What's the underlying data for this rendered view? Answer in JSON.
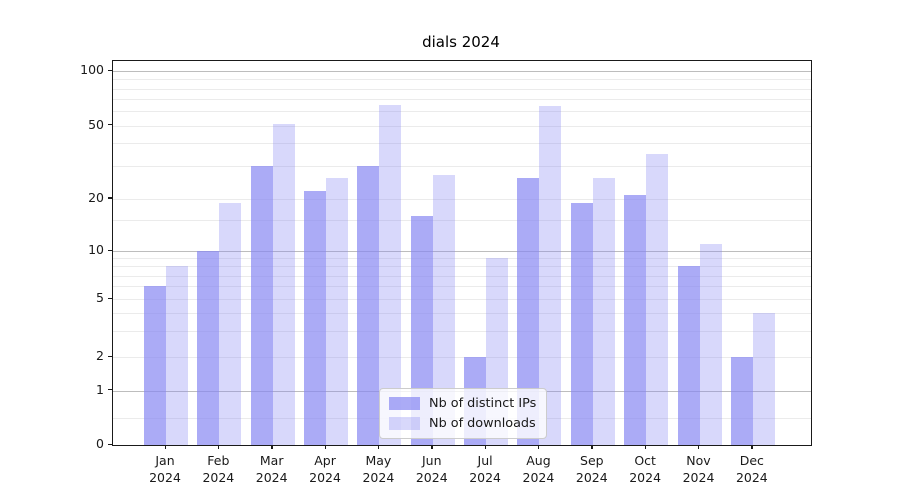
{
  "figure": {
    "title": "dials 2024"
  },
  "chart_data": {
    "type": "bar",
    "title": "dials 2024",
    "categories": [
      "Jan",
      "Feb",
      "Mar",
      "Apr",
      "May",
      "Jun",
      "Jul",
      "Aug",
      "Sep",
      "Oct",
      "Nov",
      "Dec"
    ],
    "x_tick_year": "2024",
    "series": [
      {
        "name": "Nb of distinct IPs",
        "color": "rgba(136,136,242,0.70)",
        "values": [
          6,
          10,
          30,
          22,
          30,
          16,
          2,
          26,
          19,
          21,
          8,
          2
        ]
      },
      {
        "name": "Nb of downloads",
        "color": "rgba(136,136,242,0.33)",
        "values": [
          8,
          19,
          51,
          26,
          65,
          27,
          9,
          64,
          26,
          35,
          11,
          4
        ]
      }
    ],
    "yscale": "symlog",
    "y_ticks": [
      100,
      50,
      20,
      10,
      5,
      2,
      1,
      0
    ],
    "ylim": [
      0,
      115
    ],
    "grid": true,
    "legend_position": "lower center"
  },
  "colors": {
    "bar_base": "#8888f2",
    "grid_minor": "#ebebeb",
    "grid_major": "#bdbdbd",
    "axis": "#1a1a1a",
    "legend_border": "#cccccc",
    "legend_bg": "rgba(255,255,255,0.8)"
  }
}
